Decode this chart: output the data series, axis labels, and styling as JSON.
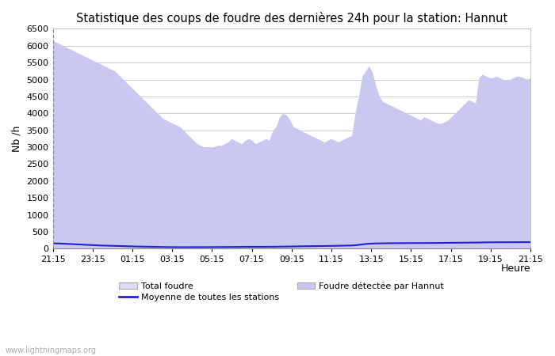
{
  "title": "Statistique des coups de foudre des dernières 24h pour la station: Hannut",
  "ylabel": "Nb /h",
  "xlabel": "Heure",
  "watermark": "www.lightningmaps.org",
  "ylim": [
    0,
    6500
  ],
  "yticks": [
    0,
    500,
    1000,
    1500,
    2000,
    2500,
    3000,
    3500,
    4000,
    4500,
    5000,
    5500,
    6000,
    6500
  ],
  "xtick_labels": [
    "21:15",
    "23:15",
    "01:15",
    "03:15",
    "05:15",
    "07:15",
    "09:15",
    "11:15",
    "13:15",
    "15:15",
    "17:15",
    "19:15",
    "21:15"
  ],
  "bg_color": "#ffffff",
  "plot_bg_color": "#ffffff",
  "grid_color": "#cccccc",
  "fill_total_color": "#dcdcf5",
  "fill_station_color": "#c8c8f0",
  "line_avg_color": "#2222cc",
  "total_foudre": [
    6150,
    6100,
    6050,
    6000,
    5950,
    5900,
    5850,
    5800,
    5750,
    5700,
    5650,
    5600,
    5550,
    5500,
    5450,
    5400,
    5350,
    5300,
    5250,
    5150,
    5050,
    4950,
    4850,
    4750,
    4650,
    4550,
    4450,
    4350,
    4250,
    4150,
    4050,
    3950,
    3850,
    3800,
    3750,
    3700,
    3650,
    3600,
    3500,
    3400,
    3300,
    3200,
    3100,
    3050,
    3000,
    2980,
    3000,
    3020,
    3050,
    3050,
    3100,
    3150,
    3250,
    3200,
    3150,
    3100,
    3200,
    3250,
    3200,
    3100,
    3150,
    3200,
    3250,
    3200,
    3500,
    3600,
    3900,
    4000,
    3950,
    3800,
    3600,
    3550,
    3500,
    3450,
    3400,
    3350,
    3300,
    3250,
    3200,
    3150,
    3200,
    3250,
    3200,
    3150,
    3200,
    3250,
    3300,
    3350,
    4000,
    4500,
    5100,
    5250,
    5400,
    5200,
    4800,
    4500,
    4350,
    4300,
    4250,
    4200,
    4150,
    4100,
    4050,
    4000,
    3950,
    3900,
    3850,
    3800,
    3900,
    3850,
    3800,
    3750,
    3700,
    3700,
    3750,
    3800,
    3900,
    4000,
    4100,
    4200,
    4300,
    4400,
    4350,
    4300,
    5050,
    5150,
    5100,
    5050,
    5050,
    5100,
    5050,
    5000,
    4980,
    5000,
    5050,
    5100,
    5080,
    5050,
    5000,
    5060
  ],
  "station_foudre": [
    6150,
    6100,
    6050,
    6000,
    5950,
    5900,
    5850,
    5800,
    5750,
    5700,
    5650,
    5600,
    5550,
    5500,
    5450,
    5400,
    5350,
    5300,
    5250,
    5150,
    5050,
    4950,
    4850,
    4750,
    4650,
    4550,
    4450,
    4350,
    4250,
    4150,
    4050,
    3950,
    3850,
    3800,
    3750,
    3700,
    3650,
    3600,
    3500,
    3400,
    3300,
    3200,
    3100,
    3050,
    3000,
    2980,
    3000,
    3020,
    3050,
    3050,
    3100,
    3150,
    3250,
    3200,
    3150,
    3100,
    3200,
    3250,
    3200,
    3100,
    3150,
    3200,
    3250,
    3200,
    3500,
    3600,
    3900,
    4000,
    3950,
    3800,
    3600,
    3550,
    3500,
    3450,
    3400,
    3350,
    3300,
    3250,
    3200,
    3150,
    3200,
    3250,
    3200,
    3150,
    3200,
    3250,
    3300,
    3350,
    4000,
    4500,
    5100,
    5250,
    5400,
    5200,
    4800,
    4500,
    4350,
    4300,
    4250,
    4200,
    4150,
    4100,
    4050,
    4000,
    3950,
    3900,
    3850,
    3800,
    3900,
    3850,
    3800,
    3750,
    3700,
    3700,
    3750,
    3800,
    3900,
    4000,
    4100,
    4200,
    4300,
    4400,
    4350,
    4300,
    5050,
    5150,
    5100,
    5050,
    5050,
    5100,
    5050,
    5000,
    4980,
    5000,
    5050,
    5100,
    5080,
    5050,
    5000,
    5060
  ],
  "avg_line": [
    160,
    158,
    155,
    150,
    145,
    140,
    135,
    130,
    125,
    120,
    115,
    110,
    105,
    100,
    97,
    94,
    91,
    88,
    85,
    82,
    79,
    76,
    73,
    70,
    67,
    65,
    63,
    61,
    59,
    57,
    55,
    53,
    51,
    50,
    49,
    48,
    48,
    47,
    47,
    47,
    47,
    47,
    47,
    47,
    48,
    48,
    49,
    50,
    51,
    52,
    53,
    54,
    55,
    55,
    55,
    56,
    57,
    57,
    57,
    57,
    57,
    58,
    58,
    58,
    59,
    60,
    62,
    64,
    66,
    68,
    70,
    72,
    74,
    75,
    76,
    77,
    78,
    79,
    80,
    81,
    82,
    84,
    86,
    88,
    90,
    92,
    95,
    98,
    105,
    115,
    130,
    140,
    150,
    155,
    158,
    160,
    162,
    163,
    164,
    165,
    166,
    167,
    167,
    168,
    168,
    168,
    168,
    169,
    170,
    170,
    170,
    171,
    171,
    172,
    173,
    174,
    175,
    176,
    177,
    178,
    179,
    180,
    181,
    182,
    185,
    188,
    190,
    191,
    191,
    192,
    192,
    193,
    193,
    194,
    194,
    195,
    195,
    196,
    196,
    196
  ]
}
